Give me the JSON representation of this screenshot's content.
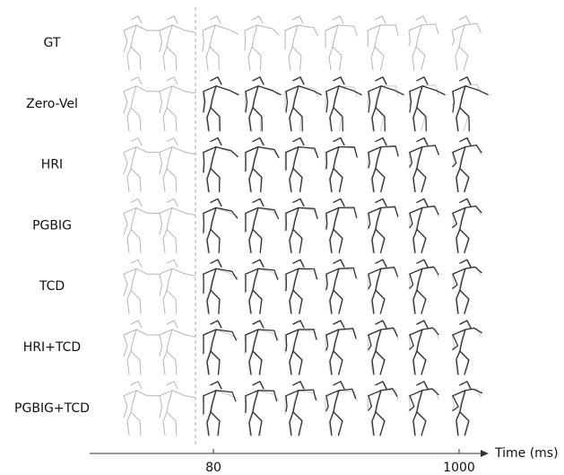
{
  "row_labels": [
    "GT",
    "Zero-Vel",
    "HRI",
    "PGBIG",
    "TCD",
    "HRI+TCD",
    "PGBIG+TCD"
  ],
  "axis": {
    "label": "Time (ms)",
    "ticks": [
      "80",
      "1000"
    ]
  }
}
